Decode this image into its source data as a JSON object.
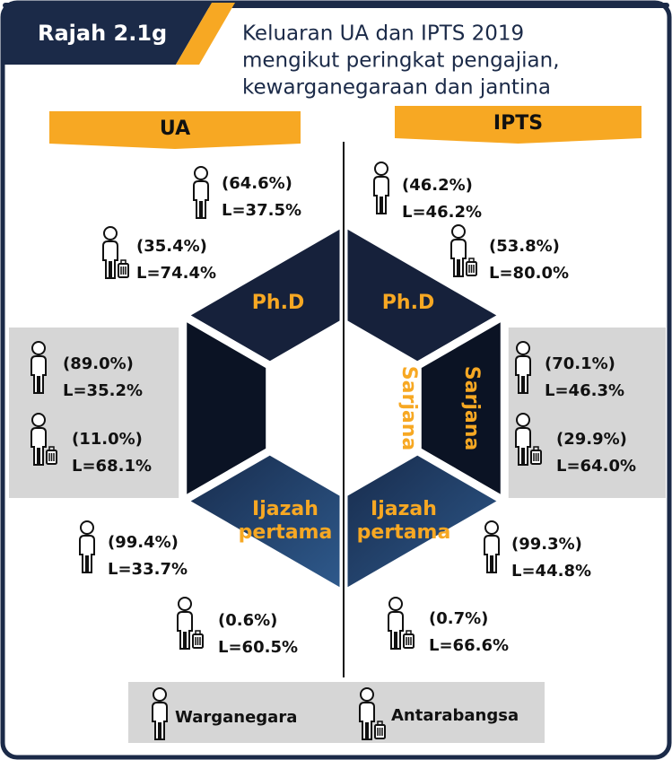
{
  "header": {
    "label": "Rajah 2.1g",
    "title": [
      "Keluaran UA dan IPTS 2019",
      "mengikut peringkat pengajian,",
      "kewarganegaraan dan jantina"
    ]
  },
  "panels": [
    {
      "name": "UA",
      "levels": [
        {
          "level": "Ph.D",
          "citizen": {
            "share": "(64.6%)",
            "male": "L=37.5%"
          },
          "international": {
            "share": "(35.4%)",
            "male": "L=74.4%"
          }
        },
        {
          "level": "Sarjana",
          "citizen": {
            "share": "(89.0%)",
            "male": "L=35.2%"
          },
          "international": {
            "share": "(11.0%)",
            "male": "L=68.1%"
          }
        },
        {
          "level": [
            "Ijazah",
            "pertama"
          ],
          "citizen": {
            "share": "(99.4%)",
            "male": "L=33.7%"
          },
          "international": {
            "share": "(0.6%)",
            "male": "L=60.5%"
          }
        }
      ]
    },
    {
      "name": "IPTS",
      "levels": [
        {
          "level": "Ph.D",
          "citizen": {
            "share": "(46.2%)",
            "male": "L=46.2%"
          },
          "international": {
            "share": "(53.8%)",
            "male": "L=80.0%"
          }
        },
        {
          "level": "Sarjana",
          "citizen": {
            "share": "(70.1%)",
            "male": "L=46.3%"
          },
          "international": {
            "share": "(29.9%)",
            "male": "L=64.0%"
          }
        },
        {
          "level": [
            "Ijazah",
            "pertama"
          ],
          "citizen": {
            "share": "(99.3%)",
            "male": "L=44.8%"
          },
          "international": {
            "share": "(0.7%)",
            "male": "L=66.6%"
          }
        }
      ]
    }
  ],
  "legend": [
    "Warganegara",
    "Antarabangsa"
  ]
}
